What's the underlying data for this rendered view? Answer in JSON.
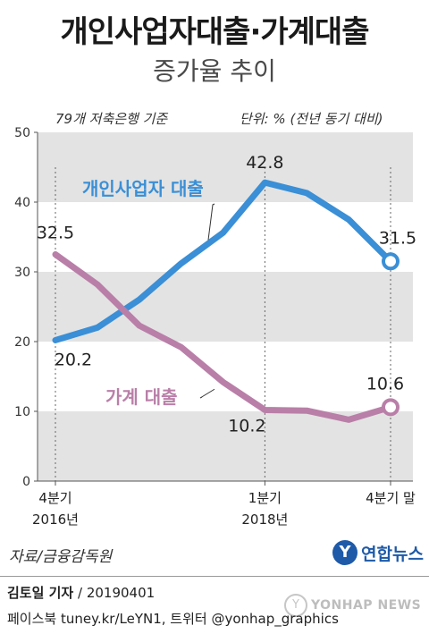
{
  "title": "개인사업자대출·가계대출",
  "subtitle": "증가율 추이",
  "basis_note": "79개 저축은행 기준",
  "unit_note": "단위: % (전년 동기 대비)",
  "source": "자료/금융감독원",
  "logo": {
    "text": "연합뉴스",
    "icon": "yonhap-logo-icon"
  },
  "credit": {
    "name": "김토일 기자",
    "date": " / 20190401"
  },
  "footer": "페이스북 tuney.kr/LeYN1, 트위터 @yonhap_graphics",
  "watermark": {
    "text": "YONHAP NEWS"
  },
  "colors": {
    "business": "#3a8fd6",
    "household": "#b97fa8",
    "band": "#e3e3e3"
  },
  "chart_data": {
    "type": "line",
    "x": [
      0,
      1,
      2,
      3,
      4,
      5,
      6,
      7,
      8
    ],
    "xticks": [
      {
        "x": 0,
        "line1": "4분기",
        "line2": "2016년"
      },
      {
        "x": 5,
        "line1": "1분기",
        "line2": "2018년"
      },
      {
        "x": 8,
        "line1": "4분기 말",
        "line2": ""
      }
    ],
    "yticks": [
      0,
      10,
      20,
      30,
      40,
      50
    ],
    "ylim": [
      0,
      50
    ],
    "grid": "alternating horizontal bands",
    "series": [
      {
        "name": "개인사업자 대출",
        "color": "#3a8fd6",
        "values": [
          20.2,
          22.0,
          26.0,
          31.2,
          35.6,
          42.8,
          41.3,
          37.5,
          31.5
        ]
      },
      {
        "name": "가계 대출",
        "color": "#b97fa8",
        "values": [
          32.5,
          28.2,
          22.3,
          19.2,
          14.2,
          10.2,
          10.1,
          8.8,
          10.6
        ]
      }
    ],
    "point_labels": [
      {
        "series": 0,
        "index": 0,
        "text": "20.2"
      },
      {
        "series": 0,
        "index": 5,
        "text": "42.8"
      },
      {
        "series": 0,
        "index": 8,
        "text": "31.5"
      },
      {
        "series": 1,
        "index": 0,
        "text": "32.5"
      },
      {
        "series": 1,
        "index": 5,
        "text": "10.2"
      },
      {
        "series": 1,
        "index": 8,
        "text": "10.6"
      }
    ]
  }
}
